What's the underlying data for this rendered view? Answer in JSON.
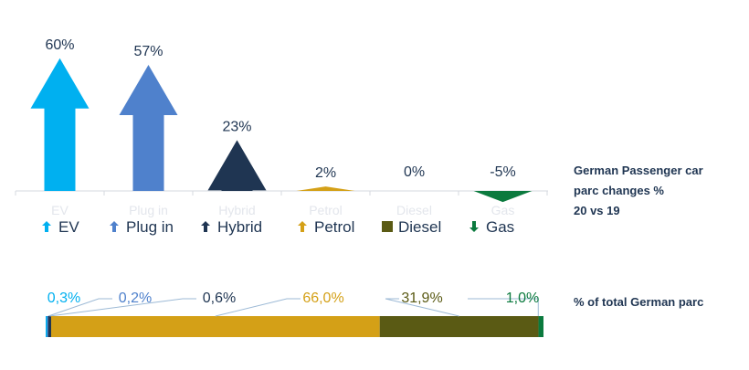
{
  "chart_data": [
    {
      "type": "bar",
      "title": "German Passenger car parc changes % 20 vs 19",
      "categories": [
        "EV",
        "Plug in",
        "Hybrid",
        "Petrol",
        "Diesel",
        "Gas"
      ],
      "values": [
        60,
        57,
        23,
        2,
        0,
        -5
      ],
      "value_labels": [
        "60%",
        "57%",
        "23%",
        "2%",
        "0%",
        "-5%"
      ],
      "colors": [
        "#00b0f0",
        "#4f81cc",
        "#1f3552",
        "#d4a017",
        "#5a5a14",
        "#0b7a3e"
      ],
      "legend": [
        "EV",
        "Plug in",
        "Hybrid",
        "Petrol",
        "Diesel",
        "Gas"
      ],
      "legend_placement": "bottom",
      "grid": false
    },
    {
      "type": "bar",
      "subtype": "stacked-100",
      "title": "% of total German parc",
      "categories": [
        "EV",
        "Plug in",
        "Hybrid",
        "Petrol",
        "Diesel",
        "Gas"
      ],
      "values": [
        0.3,
        0.2,
        0.6,
        66.0,
        31.9,
        1.0
      ],
      "value_labels": [
        "0,3%",
        "0,2%",
        "0,6%",
        "66,0%",
        "31,9%",
        "1,0%"
      ],
      "colors": [
        "#00b0f0",
        "#4f81cc",
        "#1f3552",
        "#d4a017",
        "#5a5a14",
        "#0b7a3e"
      ]
    }
  ],
  "side_titles": {
    "changes_line1": "German Passenger car",
    "changes_line2": "parc changes %",
    "changes_line3": "20 vs 19",
    "share": "% of total German parc"
  }
}
